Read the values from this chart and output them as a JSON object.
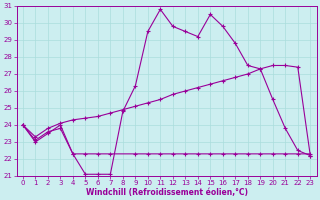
{
  "xlabel": "Windchill (Refroidissement éolien,°C)",
  "bg_color": "#cceef0",
  "grid_color": "#aadddd",
  "line_color": "#990099",
  "xlim": [
    -0.5,
    23.5
  ],
  "ylim": [
    21,
    31
  ],
  "xticks": [
    0,
    1,
    2,
    3,
    4,
    5,
    6,
    7,
    8,
    9,
    10,
    11,
    12,
    13,
    14,
    15,
    16,
    17,
    18,
    19,
    20,
    21,
    22,
    23
  ],
  "yticks": [
    21,
    22,
    23,
    24,
    25,
    26,
    27,
    28,
    29,
    30,
    31
  ],
  "line1_x": [
    0,
    1,
    2,
    3,
    4,
    5,
    6,
    7,
    8,
    9,
    10,
    11,
    12,
    13,
    14,
    15,
    16,
    17,
    18,
    19,
    20,
    21,
    22,
    23
  ],
  "line1_y": [
    24.0,
    23.0,
    23.5,
    24.0,
    22.3,
    21.1,
    21.1,
    21.1,
    24.8,
    26.3,
    29.5,
    30.8,
    29.8,
    29.5,
    29.2,
    30.5,
    29.8,
    28.8,
    27.5,
    27.3,
    25.5,
    23.8,
    22.5,
    22.2
  ],
  "line2_x": [
    0,
    1,
    2,
    3,
    4,
    5,
    6,
    7,
    9,
    10,
    11,
    12,
    13,
    14,
    15,
    16,
    17,
    18,
    19,
    20,
    21,
    22,
    23
  ],
  "line2_y": [
    24.0,
    23.1,
    23.6,
    23.8,
    22.3,
    22.3,
    22.3,
    22.3,
    22.3,
    22.3,
    22.3,
    22.3,
    22.3,
    22.3,
    22.3,
    22.3,
    22.3,
    22.3,
    22.3,
    22.3,
    22.3,
    22.3,
    22.3
  ],
  "line3_x": [
    0,
    1,
    2,
    3,
    4,
    5,
    6,
    7,
    8,
    9,
    10,
    11,
    12,
    13,
    14,
    15,
    16,
    17,
    18,
    19,
    20,
    21,
    22,
    23
  ],
  "line3_y": [
    24.0,
    23.3,
    23.8,
    24.1,
    24.3,
    24.4,
    24.5,
    24.7,
    24.9,
    25.1,
    25.3,
    25.5,
    25.8,
    26.0,
    26.2,
    26.4,
    26.6,
    26.8,
    27.0,
    27.3,
    27.5,
    27.5,
    27.4,
    22.2
  ]
}
